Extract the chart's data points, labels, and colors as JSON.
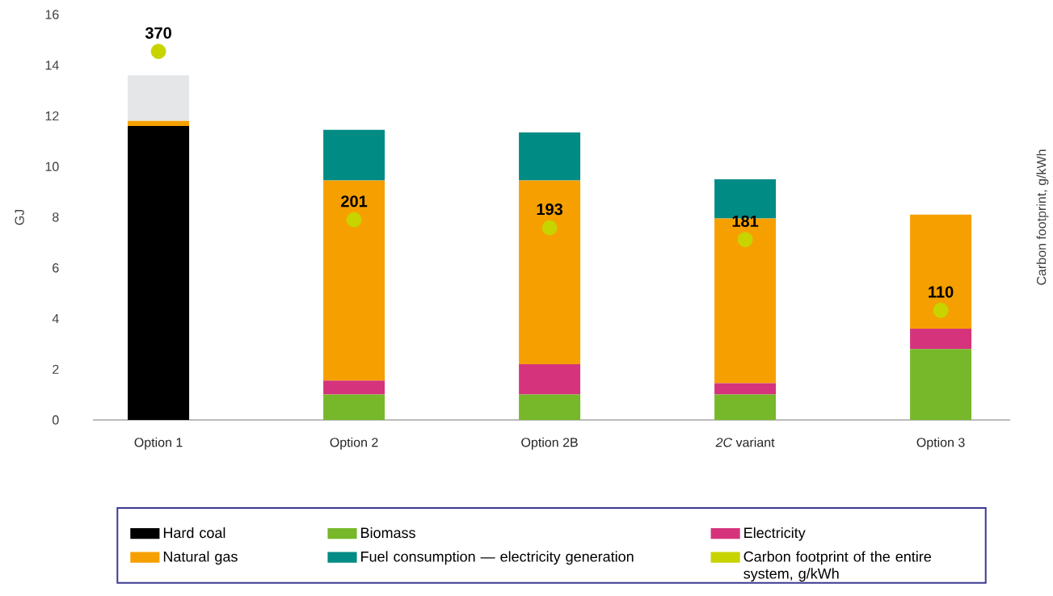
{
  "chart_data": {
    "type": "bar",
    "stacked": true,
    "categories": [
      "Option 1",
      "Option 2",
      "Option 2B",
      "*2C* variant",
      "Option 3"
    ],
    "ylabel": "GJ",
    "y2label": "Carbon footprint, g/kWh",
    "ylim": [
      0,
      16
    ],
    "yticks": [
      0,
      2,
      4,
      6,
      8,
      10,
      12,
      14,
      16
    ],
    "legend": "bottom",
    "series": [
      {
        "name": "Hard coal",
        "color": "#000000",
        "values": [
          11.6,
          null,
          null,
          null,
          null
        ]
      },
      {
        "name": "Biomass",
        "color": "#76b82a",
        "values": [
          null,
          1.0,
          1.0,
          1.0,
          2.8
        ]
      },
      {
        "name": "Electricity",
        "color": "#d5347c",
        "values": [
          null,
          0.55,
          1.2,
          0.45,
          0.8
        ]
      },
      {
        "name": "Natural gas",
        "color": "#f5a000",
        "values": [
          0.2,
          7.9,
          7.25,
          6.5,
          4.5
        ]
      },
      {
        "name": "Fuel consumption — electricity generation",
        "color": "#008b84",
        "values": [
          null,
          2.0,
          1.9,
          1.55,
          null
        ]
      },
      {
        "color": "#e5e6e8",
        "values": [
          1.8,
          null,
          null,
          null,
          null
        ]
      },
      {
        "name": "Carbon footprint of the entire system, g/kWh",
        "type": "scatter",
        "axis": "y2",
        "marker": "circle",
        "color": "#c8d400",
        "values": [
          370,
          201,
          193,
          181,
          110
        ],
        "value_labels": [
          "370",
          "201",
          "193",
          "181",
          "110"
        ]
      }
    ]
  }
}
